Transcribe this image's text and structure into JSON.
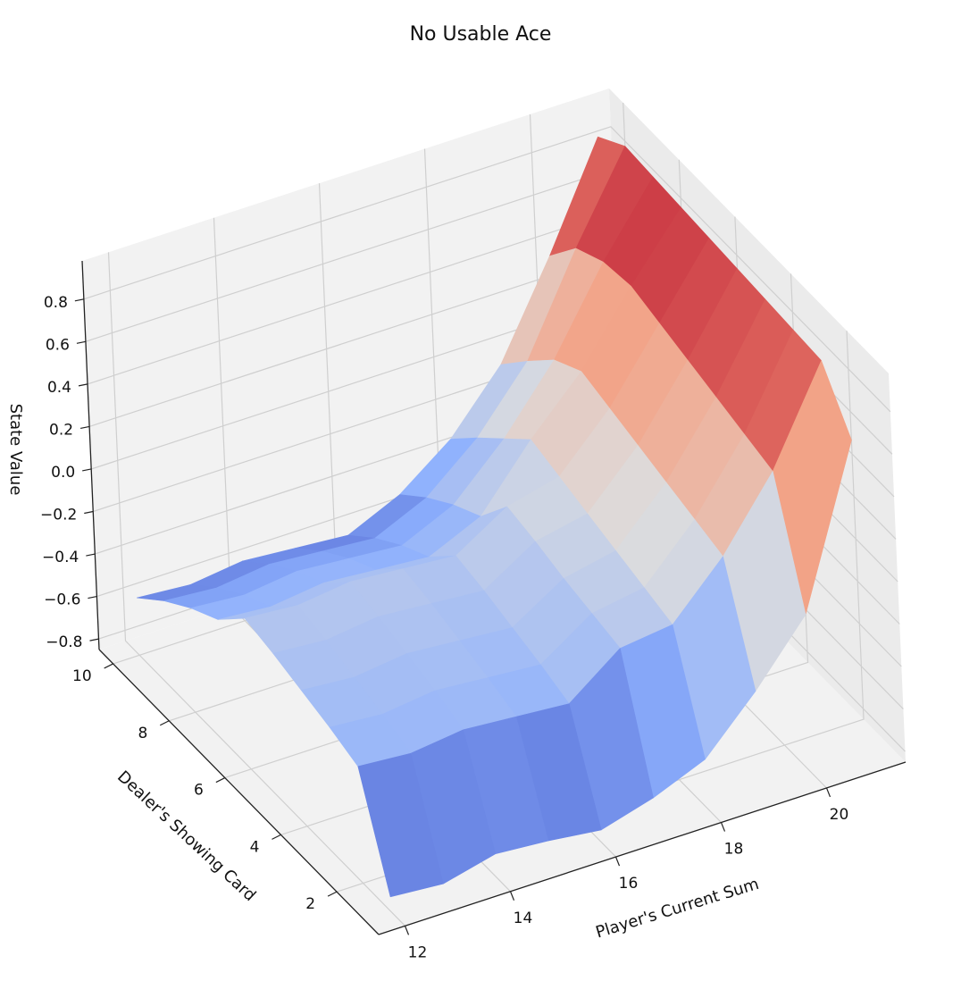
{
  "chart_data": {
    "type": "surface",
    "title": "No Usable Ace",
    "xlabel": "Player's Current Sum",
    "ylabel": "Dealer's Showing Card",
    "zlabel": "State Value",
    "x": [
      12,
      13,
      14,
      15,
      16,
      17,
      18,
      19,
      20,
      21
    ],
    "y": [
      1,
      2,
      3,
      4,
      5,
      6,
      7,
      8,
      9,
      10
    ],
    "x_ticks": [
      "12",
      "14",
      "16",
      "18",
      "20"
    ],
    "y_ticks": [
      "2",
      "4",
      "6",
      "8",
      "10"
    ],
    "z_ticks": [
      "−0.8",
      "−0.6",
      "−0.4",
      "−0.2",
      "0.0",
      "0.2",
      "0.4",
      "0.6",
      "0.8"
    ],
    "xlim": [
      11.5,
      21.5
    ],
    "ylim": [
      0.5,
      10.5
    ],
    "zlim": [
      -0.85,
      0.98
    ],
    "colormap": "coolwarm",
    "grid": true,
    "values": [
      [
        -0.78,
        -0.8,
        -0.74,
        -0.76,
        -0.79,
        -0.72,
        -0.62,
        -0.38,
        -0.1,
        0.64
      ],
      [
        -0.3,
        -0.32,
        -0.29,
        -0.31,
        -0.33,
        -0.15,
        -0.12,
        0.12,
        0.44,
        0.88
      ],
      [
        -0.25,
        -0.27,
        -0.24,
        -0.26,
        -0.28,
        -0.12,
        -0.08,
        0.16,
        0.48,
        0.89
      ],
      [
        -0.21,
        -0.23,
        -0.2,
        -0.22,
        -0.24,
        -0.09,
        -0.04,
        0.2,
        0.52,
        0.9
      ],
      [
        -0.17,
        -0.19,
        -0.16,
        -0.18,
        -0.2,
        -0.05,
        0.0,
        0.24,
        0.56,
        0.91
      ],
      [
        -0.14,
        -0.16,
        -0.13,
        -0.15,
        -0.17,
        -0.02,
        0.04,
        0.28,
        0.6,
        0.92
      ],
      [
        -0.28,
        -0.3,
        -0.27,
        -0.29,
        -0.31,
        -0.2,
        0.08,
        0.32,
        0.64,
        0.93
      ],
      [
        -0.36,
        -0.38,
        -0.35,
        -0.37,
        -0.39,
        -0.28,
        -0.05,
        0.24,
        0.62,
        0.94
      ],
      [
        -0.46,
        -0.48,
        -0.45,
        -0.47,
        -0.49,
        -0.38,
        -0.18,
        0.1,
        0.55,
        0.95
      ],
      [
        -0.58,
        -0.6,
        -0.57,
        -0.59,
        -0.61,
        -0.5,
        -0.32,
        -0.05,
        0.38,
        0.86
      ]
    ]
  }
}
